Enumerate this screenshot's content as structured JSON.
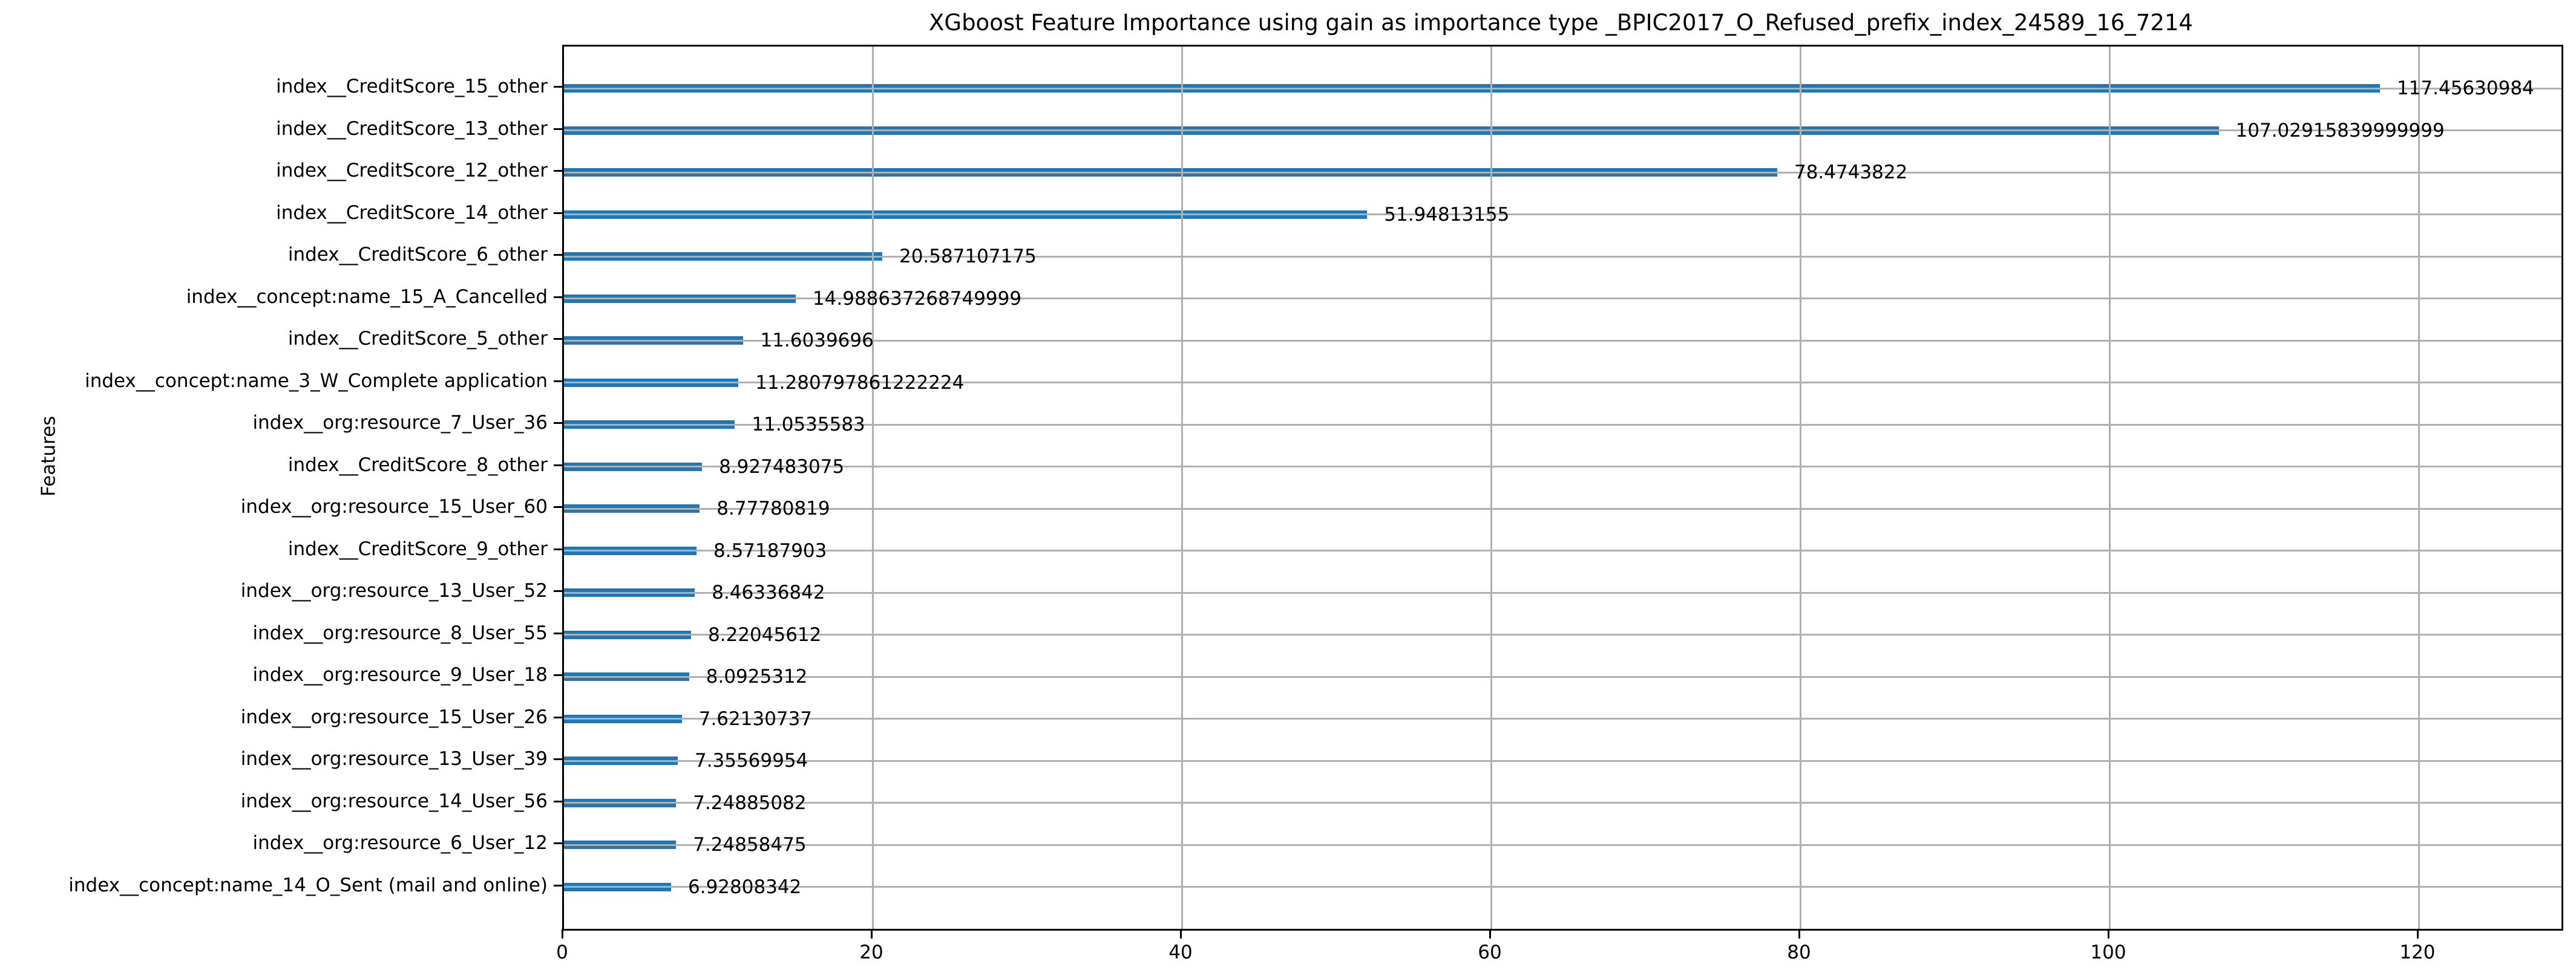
{
  "chart_data": {
    "type": "bar",
    "orientation": "horizontal",
    "title": "XGboost Feature Importance using gain as importance type _BPIC2017_O_Refused_prefix_index_24589_16_7214",
    "xlabel": "",
    "ylabel": "Features",
    "xlim": [
      0,
      129.2
    ],
    "xticks": [
      0,
      20,
      40,
      60,
      80,
      100,
      120
    ],
    "grid": true,
    "legend": "none",
    "bar_color": "#1f77b4",
    "grid_color": "#b0b0b0",
    "axis_color": "#000000",
    "text_color": "#000000",
    "categories": [
      "index__CreditScore_15_other",
      "index__CreditScore_13_other",
      "index__CreditScore_12_other",
      "index__CreditScore_14_other",
      "index__CreditScore_6_other",
      "index__concept:name_15_A_Cancelled",
      "index__CreditScore_5_other",
      "index__concept:name_3_W_Complete application",
      "index__org:resource_7_User_36",
      "index__CreditScore_8_other",
      "index__org:resource_15_User_60",
      "index__CreditScore_9_other",
      "index__org:resource_13_User_52",
      "index__org:resource_8_User_55",
      "index__org:resource_9_User_18",
      "index__org:resource_15_User_26",
      "index__org:resource_13_User_39",
      "index__org:resource_14_User_56",
      "index__org:resource_6_User_12",
      "index__concept:name_14_O_Sent (mail and online)"
    ],
    "values": [
      117.45630984,
      107.02915839999999,
      78.4743822,
      51.94813155,
      20.587107175,
      14.988637268749999,
      11.6039696,
      11.280797861222224,
      11.0535583,
      8.927483075,
      8.77780819,
      8.57187903,
      8.46336842,
      8.22045612,
      8.0925312,
      7.62130737,
      7.35569954,
      7.24885082,
      7.24858475,
      6.92808342
    ],
    "value_labels": [
      "117.45630984",
      "107.02915839999999",
      "78.4743822",
      "51.94813155",
      "20.587107175",
      "14.988637268749999",
      "11.6039696",
      "11.280797861222224",
      "11.0535583",
      "8.927483075",
      "8.77780819",
      "8.57187903",
      "8.46336842",
      "8.22045612",
      "8.0925312",
      "7.62130737",
      "7.35569954",
      "7.24885082",
      "7.24858475",
      "6.92808342"
    ]
  }
}
